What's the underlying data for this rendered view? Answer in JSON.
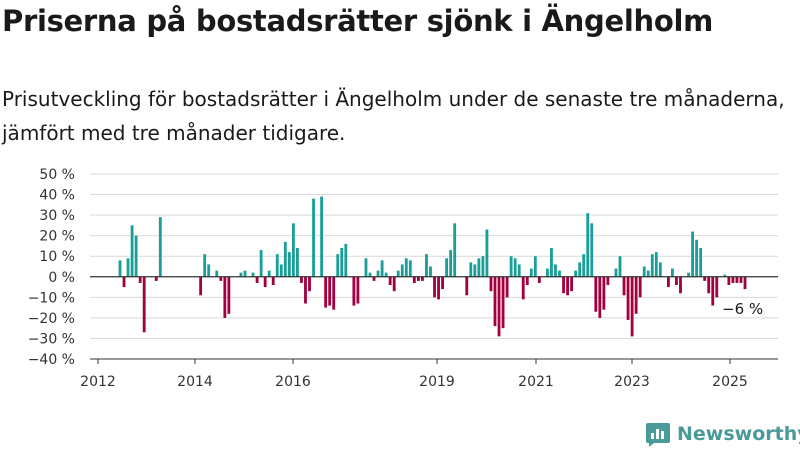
{
  "title": "Priserna på bostadsrätter sjönk i Ängelholm",
  "subtitle": "Prisutveckling för bostadsrätter i Ängelholm under de senaste tre månaderna, jämfört med tre månader tidigare.",
  "brand": "Newsworthy",
  "colors": {
    "positive": "#1a9e98",
    "negative": "#a3003f",
    "logo": "#4a9a9a"
  },
  "chart_data": {
    "type": "bar",
    "y_ticks": [
      "50 %",
      "40 %",
      "30 %",
      "20 %",
      "10 %",
      "0 %",
      "−10 %",
      "−20 %",
      "−30 %",
      "−40 %"
    ],
    "ylim": [
      -40,
      50
    ],
    "x_ticks": [
      "2012",
      "2014",
      "2016",
      "2019",
      "2021",
      "2023",
      "2025"
    ],
    "grid": true,
    "annotation": "−6 %",
    "values": [
      8,
      -5,
      9,
      25,
      20,
      -3,
      -27,
      0,
      0,
      -2,
      29,
      0,
      0,
      0,
      0,
      0,
      0,
      0,
      0,
      0,
      -9,
      11,
      6,
      0,
      3,
      -2,
      -20,
      -18,
      0,
      0,
      2,
      3,
      0,
      2,
      -3,
      13,
      -5,
      3,
      -4,
      11,
      6,
      17,
      12,
      26,
      14,
      -3,
      -13,
      -7,
      38,
      0,
      39,
      -15,
      -14,
      -16,
      11,
      14,
      16,
      0,
      -14,
      -13,
      0,
      9,
      2,
      -2,
      3,
      8,
      2,
      -4,
      -7,
      3,
      6,
      9,
      8,
      -3,
      -2,
      -2,
      11,
      5,
      -10,
      -11,
      -6,
      9,
      13,
      26,
      0,
      0,
      -9,
      7,
      6,
      9,
      10,
      23,
      -7,
      -24,
      -29,
      -25,
      -10,
      10,
      9,
      6,
      -11,
      -4,
      4,
      10,
      -3,
      0,
      4,
      14,
      6,
      3,
      -8,
      -9,
      -7,
      3,
      7,
      11,
      31,
      26,
      -17,
      -20,
      -16,
      -4,
      0,
      4,
      10,
      -9,
      -21,
      -29,
      -18,
      -10,
      5,
      3,
      11,
      12,
      7,
      0,
      -5,
      4,
      -4,
      -8,
      0,
      2,
      22,
      18,
      14,
      -2,
      -8,
      -14,
      -10,
      0,
      1,
      -4,
      -3,
      -3,
      -3,
      -6
    ]
  }
}
